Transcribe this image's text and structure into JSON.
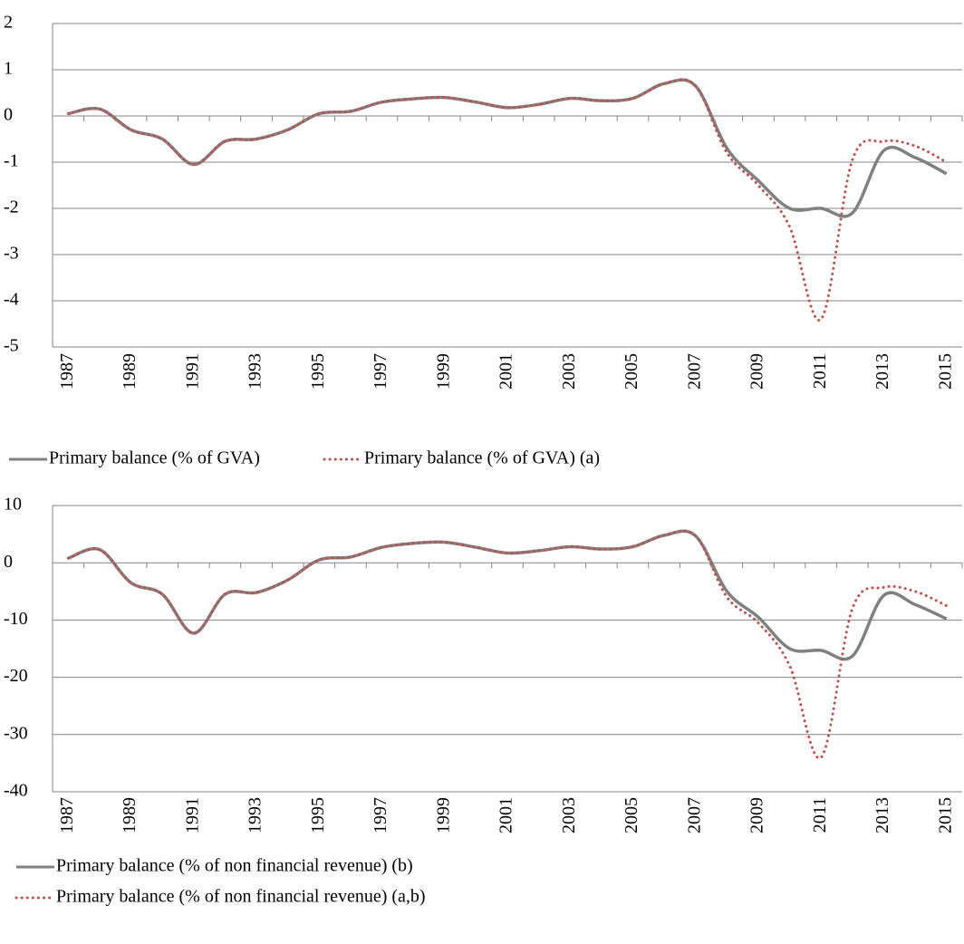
{
  "chart_data": [
    {
      "type": "line",
      "categories": [
        "1987",
        null,
        "1989",
        null,
        "1991",
        null,
        "1993",
        null,
        "1995",
        null,
        "1997",
        null,
        "1999",
        null,
        "2001",
        null,
        "2003",
        null,
        "2005",
        null,
        "2007",
        null,
        "2009",
        null,
        "2011",
        null,
        "2013",
        null,
        "2015"
      ],
      "series": [
        {
          "name": "Primary balance (% of GVA)",
          "color": "#808080",
          "style": "solid",
          "values": [
            0.05,
            0.15,
            -0.3,
            -0.5,
            -1.05,
            -0.55,
            -0.5,
            -0.3,
            0.05,
            0.1,
            0.3,
            0.37,
            0.4,
            0.3,
            0.18,
            0.25,
            0.38,
            0.33,
            0.38,
            0.7,
            0.65,
            -0.7,
            -1.4,
            -2.0,
            -2.0,
            -2.1,
            -0.75,
            -0.9,
            -1.25
          ]
        },
        {
          "name": "Primary balance (% of GVA) (a)",
          "color": "#c0504d",
          "style": "dotted",
          "values": [
            0.05,
            0.15,
            -0.3,
            -0.5,
            -1.05,
            -0.55,
            -0.5,
            -0.3,
            0.05,
            0.1,
            0.3,
            0.37,
            0.4,
            0.3,
            0.18,
            0.25,
            0.38,
            0.33,
            0.38,
            0.7,
            0.65,
            -0.8,
            -1.5,
            -2.4,
            -4.4,
            -0.95,
            -0.55,
            -0.65,
            -1.0
          ]
        }
      ],
      "ylim": [
        -5,
        2
      ],
      "yticks": [
        -5,
        -4,
        -3,
        -2,
        -1,
        0,
        1,
        2
      ],
      "grid": true
    },
    {
      "type": "line",
      "categories": [
        "1987",
        null,
        "1989",
        null,
        "1991",
        null,
        "1993",
        null,
        "1995",
        null,
        "1997",
        null,
        "1999",
        null,
        "2001",
        null,
        "2003",
        null,
        "2005",
        null,
        "2007",
        null,
        "2009",
        null,
        "2011",
        null,
        "2013",
        null,
        "2015"
      ],
      "series": [
        {
          "name": "Primary balance (% of non financial revenue) (b)",
          "color": "#808080",
          "style": "solid",
          "values": [
            0.8,
            2.3,
            -3.5,
            -5.5,
            -12.3,
            -5.5,
            -5.2,
            -3,
            0.5,
            1,
            2.7,
            3.4,
            3.6,
            2.7,
            1.7,
            2.1,
            2.8,
            2.4,
            2.8,
            4.8,
            4.7,
            -5,
            -9.5,
            -15,
            -15.3,
            -16.3,
            -5.7,
            -7.3,
            -9.8
          ]
        },
        {
          "name": "Primary balance (% of non financial revenue) (a,b)",
          "color": "#c0504d",
          "style": "dotted",
          "values": [
            0.8,
            2.3,
            -3.5,
            -5.5,
            -12.3,
            -5.5,
            -5.2,
            -3,
            0.5,
            1,
            2.7,
            3.4,
            3.6,
            2.7,
            1.7,
            2.1,
            2.8,
            2.4,
            2.8,
            4.8,
            4.7,
            -6,
            -10.5,
            -18,
            -34,
            -8,
            -4.3,
            -5,
            -7.5
          ]
        }
      ],
      "ylim": [
        -40,
        10
      ],
      "yticks": [
        -40,
        -30,
        -20,
        -10,
        0,
        10
      ],
      "grid": true
    }
  ]
}
